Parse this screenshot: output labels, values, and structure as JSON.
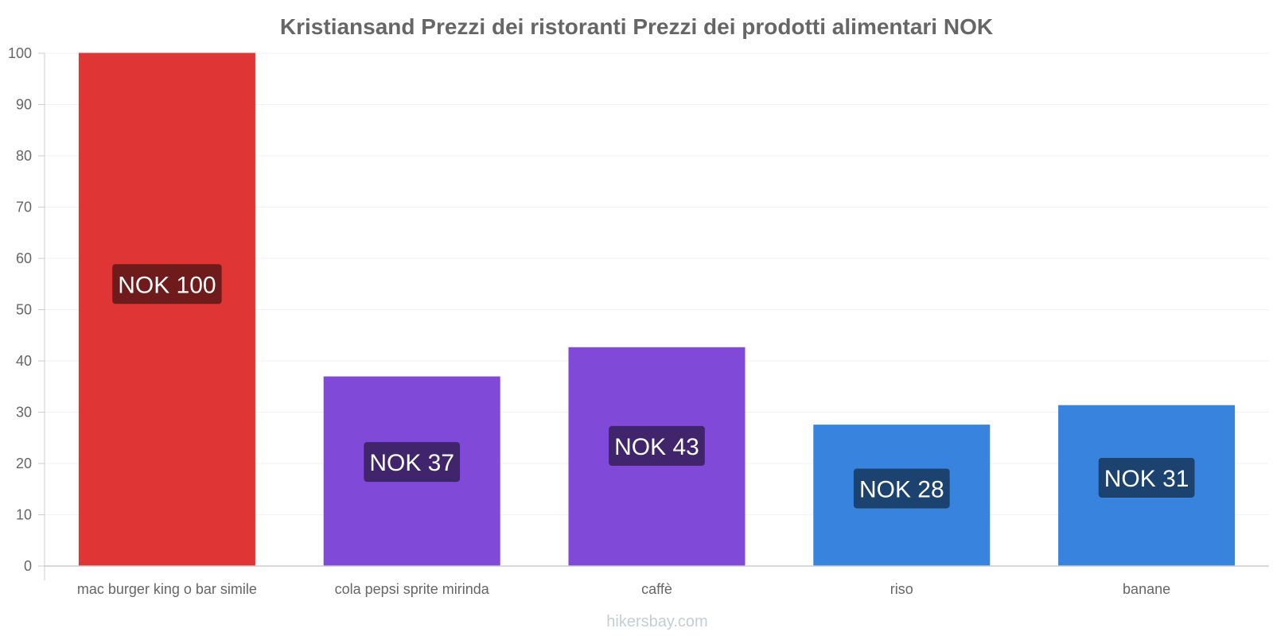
{
  "chart_data": {
    "type": "bar",
    "title": "Kristiansand Prezzi dei ristoranti Prezzi dei prodotti alimentari NOK",
    "categories": [
      "mac burger king o bar simile",
      "cola pepsi sprite mirinda",
      "caffè",
      "riso",
      "banane"
    ],
    "values": [
      100,
      36.9,
      42.6,
      27.5,
      31.3
    ],
    "value_labels": [
      "NOK 100",
      "NOK 37",
      "NOK 43",
      "NOK 28",
      "NOK 31"
    ],
    "bar_colors": [
      "#e03535",
      "#8049d8",
      "#8049d8",
      "#3783de",
      "#3783de"
    ],
    "label_bg_colors": [
      "#701b1b",
      "#40256c",
      "#40256c",
      "#1c426f",
      "#1c426f"
    ],
    "ylim": [
      0,
      100
    ],
    "yticks": [
      0,
      10,
      20,
      30,
      40,
      50,
      60,
      70,
      80,
      90,
      100
    ],
    "xlabel": "",
    "ylabel": "",
    "grid": true
  },
  "footer": {
    "credit": "hikersbay.com"
  }
}
